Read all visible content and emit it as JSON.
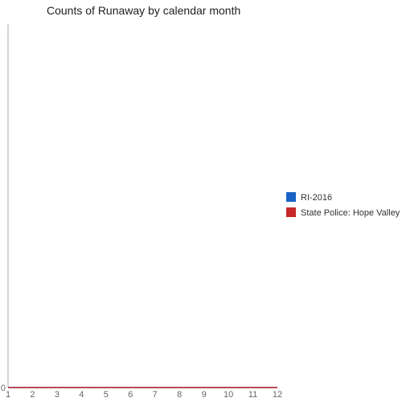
{
  "chart_data": {
    "type": "line",
    "title": "Counts of Runaway by calendar month",
    "xlabel": "",
    "ylabel": "",
    "x": [
      1,
      2,
      3,
      4,
      5,
      6,
      7,
      8,
      9,
      10,
      11,
      12
    ],
    "xlim": [
      1,
      12
    ],
    "ylim": [
      0,
      1
    ],
    "y_ticks": [
      "0"
    ],
    "grid": false,
    "legend_position": "right",
    "series": [
      {
        "name": "RI-2016",
        "color": "#1a63c6",
        "values": [
          0,
          0,
          0,
          0,
          0,
          0,
          0,
          0,
          0,
          0,
          0,
          0
        ]
      },
      {
        "name": "State Police: Hope Valley",
        "color": "#c62828",
        "values": [
          0,
          0,
          0,
          0,
          0,
          0,
          0,
          0,
          0,
          0,
          0,
          0
        ]
      }
    ]
  }
}
